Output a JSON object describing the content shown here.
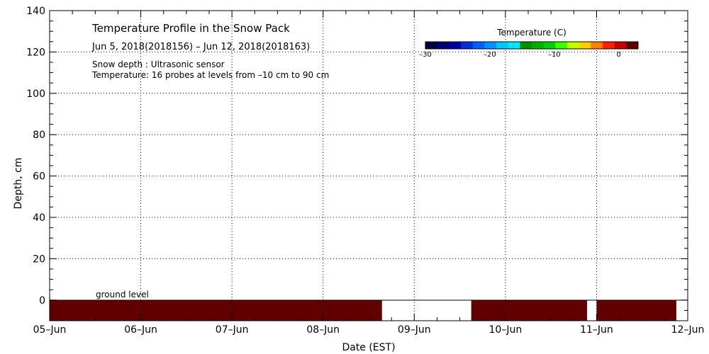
{
  "chart_data": {
    "type": "heatmap",
    "title": "Temperature Profile in the Snow Pack",
    "subtitle": "Jun  5, 2018(2018156) – Jun 12, 2018(2018163)",
    "annotations": [
      "Snow depth : Ultrasonic sensor",
      "Temperature: 16 probes at levels from –10 cm to 90 cm"
    ],
    "ground_label": "ground level",
    "xlabel": "Date (EST)",
    "ylabel": "Depth, cm",
    "x_ticks": [
      "05–Jun",
      "06–Jun",
      "07–Jun",
      "08–Jun",
      "09–Jun",
      "10–Jun",
      "11–Jun",
      "12–Jun"
    ],
    "xlim": [
      "2018-06-05",
      "2018-06-12"
    ],
    "ylim": [
      -10,
      140
    ],
    "y_ticks": [
      0,
      20,
      40,
      60,
      80,
      100,
      120,
      140
    ],
    "grid": true,
    "colorbar": {
      "title": "Temperature (C)",
      "ticks": [
        "–30",
        "–20",
        "–10",
        "0"
      ],
      "range": [
        -30,
        3
      ],
      "colors": [
        "#000040",
        "#000070",
        "#0000a0",
        "#0030d0",
        "#0060ff",
        "#0090ff",
        "#00c8ff",
        "#00e8ff",
        "#009000",
        "#00b000",
        "#00d000",
        "#40ff00",
        "#c0ff00",
        "#ffd000",
        "#ff8000",
        "#ff2000",
        "#c00000",
        "#600000"
      ]
    },
    "series": [
      {
        "depth_range": [
          -10,
          0
        ],
        "temperature_color": "#600000",
        "segments": [
          {
            "start": "2018-06-05 00:00",
            "end": "2018-06-08 15:30"
          },
          {
            "start": "2018-06-09 15:00",
            "end": "2018-06-10 21:30"
          },
          {
            "start": "2018-06-11 00:00",
            "end": "2018-06-11 21:00"
          }
        ]
      }
    ]
  }
}
